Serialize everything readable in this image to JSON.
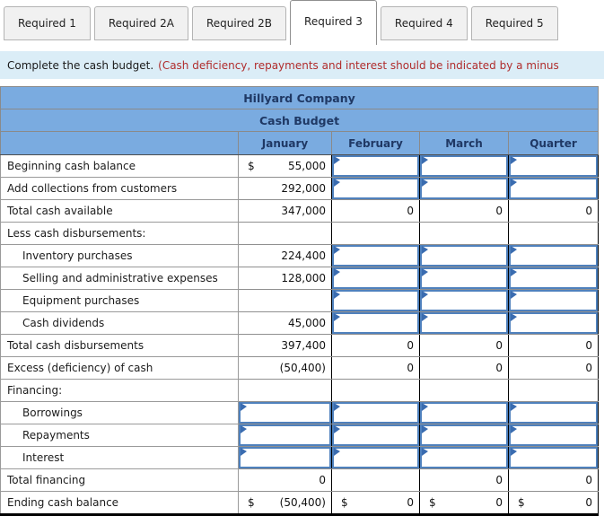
{
  "tabs": [
    {
      "label": "Required 1",
      "active": false
    },
    {
      "label": "Required 2A",
      "active": false
    },
    {
      "label": "Required 2B",
      "active": false
    },
    {
      "label": "Required 3",
      "active": true
    },
    {
      "label": "Required 4",
      "active": false
    },
    {
      "label": "Required 5",
      "active": false
    }
  ],
  "instruction": {
    "text": "Complete the cash budget.",
    "warning": "(Cash deficiency, repayments and interest should be indicated by a minus"
  },
  "budget": {
    "title": "Hillyard Company",
    "subtitle": "Cash Budget",
    "columns": [
      "January",
      "February",
      "March",
      "Quarter"
    ],
    "rows": [
      {
        "label": "Beginning cash balance",
        "indent": false,
        "total": false,
        "cells": [
          {
            "type": "value",
            "prefix": "$",
            "value": "55,000"
          },
          {
            "type": "input"
          },
          {
            "type": "input"
          },
          {
            "type": "input"
          }
        ]
      },
      {
        "label": "Add collections from customers",
        "indent": false,
        "total": false,
        "cells": [
          {
            "type": "value",
            "value": "292,000"
          },
          {
            "type": "input"
          },
          {
            "type": "input"
          },
          {
            "type": "input"
          }
        ]
      },
      {
        "label": "Total cash available",
        "indent": false,
        "total": true,
        "cells": [
          {
            "type": "value",
            "value": "347,000"
          },
          {
            "type": "value",
            "value": "0"
          },
          {
            "type": "value",
            "value": "0"
          },
          {
            "type": "value",
            "value": "0"
          }
        ]
      },
      {
        "label": "Less cash disbursements:",
        "indent": false,
        "total": false,
        "cells": [
          {
            "type": "blank"
          },
          {
            "type": "blank"
          },
          {
            "type": "blank"
          },
          {
            "type": "blank"
          }
        ]
      },
      {
        "label": "Inventory purchases",
        "indent": true,
        "total": false,
        "cells": [
          {
            "type": "value",
            "value": "224,400"
          },
          {
            "type": "input"
          },
          {
            "type": "input"
          },
          {
            "type": "input"
          }
        ]
      },
      {
        "label": "Selling and administrative expenses",
        "indent": true,
        "total": false,
        "cells": [
          {
            "type": "value",
            "value": "128,000"
          },
          {
            "type": "input"
          },
          {
            "type": "input"
          },
          {
            "type": "input"
          }
        ]
      },
      {
        "label": "Equipment purchases",
        "indent": true,
        "total": false,
        "cells": [
          {
            "type": "blank"
          },
          {
            "type": "input"
          },
          {
            "type": "input"
          },
          {
            "type": "input"
          }
        ]
      },
      {
        "label": "Cash dividends",
        "indent": true,
        "total": false,
        "cells": [
          {
            "type": "value",
            "value": "45,000"
          },
          {
            "type": "input"
          },
          {
            "type": "input"
          },
          {
            "type": "input"
          }
        ]
      },
      {
        "label": "Total cash disbursements",
        "indent": false,
        "total": true,
        "cells": [
          {
            "type": "value",
            "value": "397,400"
          },
          {
            "type": "value",
            "value": "0"
          },
          {
            "type": "value",
            "value": "0"
          },
          {
            "type": "value",
            "value": "0"
          }
        ]
      },
      {
        "label": "Excess (deficiency) of cash",
        "indent": false,
        "total": true,
        "cells": [
          {
            "type": "value",
            "value": "(50,400)"
          },
          {
            "type": "value",
            "value": "0"
          },
          {
            "type": "value",
            "value": "0"
          },
          {
            "type": "value",
            "value": "0"
          }
        ]
      },
      {
        "label": "Financing:",
        "indent": false,
        "total": false,
        "cells": [
          {
            "type": "blank"
          },
          {
            "type": "blank"
          },
          {
            "type": "blank"
          },
          {
            "type": "blank"
          }
        ]
      },
      {
        "label": "Borrowings",
        "indent": true,
        "total": false,
        "cells": [
          {
            "type": "input"
          },
          {
            "type": "input"
          },
          {
            "type": "input"
          },
          {
            "type": "input"
          }
        ]
      },
      {
        "label": "Repayments",
        "indent": true,
        "total": false,
        "cells": [
          {
            "type": "input"
          },
          {
            "type": "input"
          },
          {
            "type": "input"
          },
          {
            "type": "input"
          }
        ]
      },
      {
        "label": "Interest",
        "indent": true,
        "total": false,
        "cells": [
          {
            "type": "input"
          },
          {
            "type": "input"
          },
          {
            "type": "input"
          },
          {
            "type": "input"
          }
        ]
      },
      {
        "label": "Total financing",
        "indent": false,
        "total": false,
        "cells": [
          {
            "type": "value",
            "value": "0"
          },
          {
            "type": "blank"
          },
          {
            "type": "value",
            "value": "0"
          },
          {
            "type": "value",
            "value": "0"
          }
        ]
      },
      {
        "label": "Ending cash balance",
        "indent": false,
        "total": true,
        "last": true,
        "cells": [
          {
            "type": "value",
            "prefix": "$",
            "value": "(50,400)"
          },
          {
            "type": "value",
            "prefix": "$",
            "value": "0"
          },
          {
            "type": "value",
            "prefix": "$",
            "value": "0"
          },
          {
            "type": "value",
            "prefix": "$",
            "value": "0"
          }
        ]
      }
    ]
  },
  "colors": {
    "header_blue": "#7aabe0",
    "header_text": "#1f3864",
    "instruction_bg": "#dbedf7",
    "warning_red": "#b02c2c",
    "input_border": "#4f81bd",
    "flag_blue": "#3a6cb0"
  },
  "icons": {
    "input_flag": "comment-flag-icon"
  }
}
